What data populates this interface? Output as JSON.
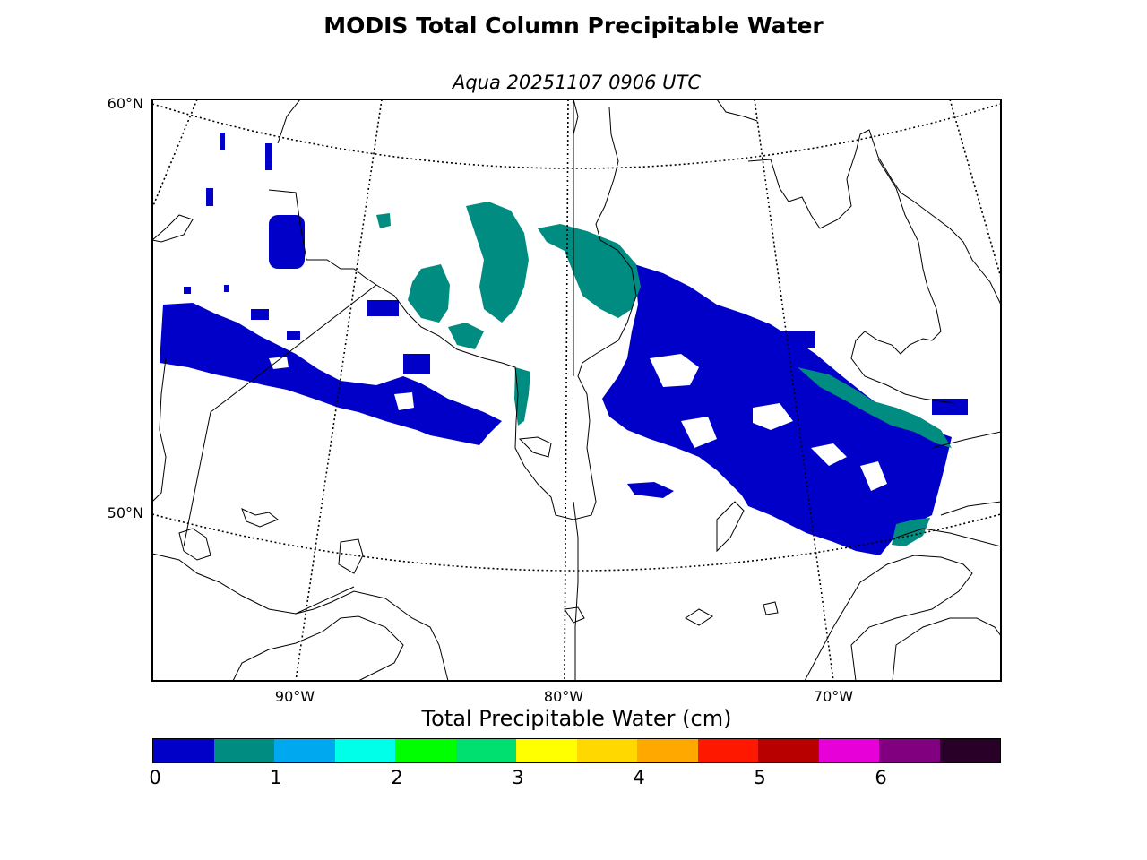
{
  "title": "MODIS Total Column Precipitable Water",
  "subtitle": "Aqua 20251107 0906 UTC",
  "map": {
    "lat_labels": [
      "60°N",
      "50°N"
    ],
    "lon_labels": [
      "90°W",
      "80°W",
      "70°W"
    ],
    "colors": {
      "land_outline": "#000000",
      "tpw_0_0.5": "#0000c8",
      "tpw_0.5_1": "#008c80"
    }
  },
  "colorbar": {
    "label": "Total Precipitable Water (cm)",
    "ticks": [
      "0",
      "1",
      "2",
      "3",
      "4",
      "5",
      "6"
    ],
    "colors": [
      "#0000c8",
      "#008c80",
      "#00a8f0",
      "#00ffe8",
      "#00ff00",
      "#00e070",
      "#ffff00",
      "#ffd800",
      "#ffa800",
      "#ff1800",
      "#b80000",
      "#e800d8",
      "#800080",
      "#280028"
    ]
  }
}
